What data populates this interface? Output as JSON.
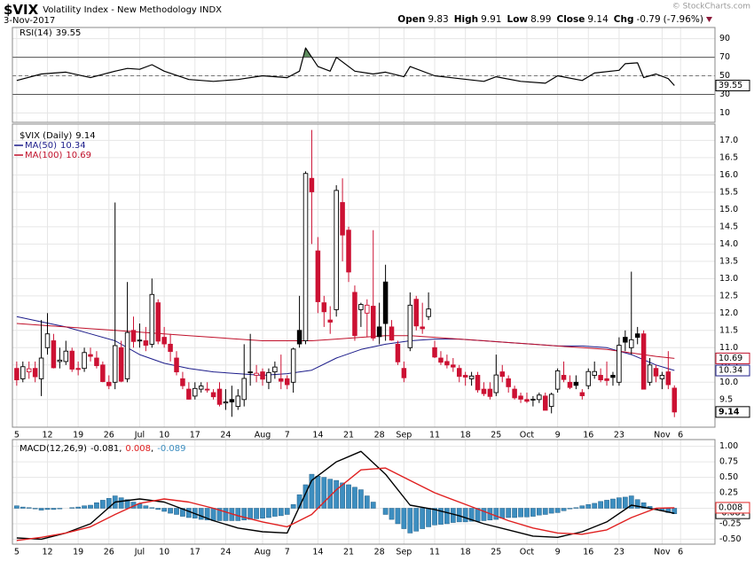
{
  "header": {
    "symbol": "$VIX",
    "name": "Volatility Index - New Methodology INDX",
    "date": "3-Nov-2017",
    "stats": [
      {
        "label": "Open",
        "value": 9.83
      },
      {
        "label": "High",
        "value": 9.91
      },
      {
        "label": "Low",
        "value": 8.99
      },
      {
        "label": "Close",
        "value": 9.14
      },
      {
        "label": "Chg",
        "value": -0.79
      }
    ],
    "change_pct": "(-7.96%)",
    "copyright": "© StockCharts.com"
  },
  "chart_data": [
    {
      "type": "line",
      "title": "RSI(14)",
      "color": "#000000",
      "fill_color": "#5e8c5e",
      "x": [
        0,
        4,
        8,
        12,
        16,
        18,
        20,
        22,
        24,
        28,
        32,
        36,
        40,
        44,
        46,
        47,
        49,
        51,
        52,
        55,
        58,
        60,
        63,
        64,
        68,
        72,
        76,
        78,
        82,
        86,
        88,
        92,
        94,
        98,
        99,
        101,
        102,
        104,
        106,
        107
      ],
      "values": [
        45,
        52,
        54,
        48,
        55,
        58,
        57,
        62,
        55,
        46,
        44,
        46,
        50,
        48,
        55,
        80,
        60,
        55,
        70,
        55,
        52,
        54,
        49,
        60,
        50,
        47,
        44,
        49,
        44,
        42,
        50,
        45,
        53,
        56,
        63,
        64,
        48,
        52,
        47,
        39.55
      ],
      "xlim": [
        -0.7,
        113.6
      ],
      "ylim": [
        0,
        102
      ],
      "yticks": [
        10,
        30,
        50,
        70,
        90
      ],
      "overbought": 70,
      "oversold": 30,
      "midline": 50,
      "grid": true
    },
    {
      "type": "candlestick",
      "title": "$VIX (Daily)",
      "up_color": "#000000",
      "down_color": "#cc1133",
      "xlim": [
        -0.7,
        113.6
      ],
      "ylim": [
        8.7,
        17.47
      ],
      "grid": true,
      "yticks": [
        9.5,
        {
          "value": 10,
          "label": "10.0"
        },
        10.5,
        {
          "value": 11,
          "label": "11.0"
        },
        11.5,
        {
          "value": 12,
          "label": "12.0"
        },
        12.5,
        {
          "value": 13,
          "label": "13.0"
        },
        13.5,
        {
          "value": 14,
          "label": "14.0"
        },
        14.5,
        {
          "value": 15,
          "label": "15.0"
        },
        15.5,
        {
          "value": 16,
          "label": "16.0"
        },
        16.5,
        {
          "value": 17,
          "label": "17.0"
        }
      ],
      "xticks": [
        {
          "value": 0,
          "label": "5"
        },
        {
          "value": 5,
          "label": "12"
        },
        {
          "value": 10,
          "label": "19"
        },
        {
          "value": 15,
          "label": "26"
        },
        {
          "value": 20,
          "label": "Jul"
        },
        {
          "value": 24,
          "label": "10"
        },
        {
          "value": 29,
          "label": "17"
        },
        {
          "value": 34,
          "label": "24"
        },
        {
          "value": 40,
          "label": "Aug"
        },
        {
          "value": 44,
          "label": "7"
        },
        {
          "value": 49,
          "label": "14"
        },
        {
          "value": 54,
          "label": "21"
        },
        {
          "value": 59,
          "label": "28"
        },
        {
          "value": 63,
          "label": "Sep"
        },
        {
          "value": 68,
          "label": "11"
        },
        {
          "value": 73,
          "label": "18"
        },
        {
          "value": 78,
          "label": "25"
        },
        {
          "value": 83,
          "label": "Oct"
        },
        {
          "value": 88,
          "label": "9"
        },
        {
          "value": 93,
          "label": "16"
        },
        {
          "value": 98,
          "label": "23"
        },
        {
          "value": 105,
          "label": "Nov"
        },
        {
          "value": 108,
          "label": "6"
        }
      ],
      "open": [
        10.4,
        10.1,
        10.3,
        10.4,
        10.1,
        11.0,
        11.2,
        10.6,
        10.6,
        10.9,
        10.4,
        10.4,
        10.8,
        10.7,
        10.5,
        10.0,
        10.0,
        11.0,
        10.1,
        11.5,
        11.2,
        11.2,
        11.1,
        12.3,
        11.3,
        11.1,
        10.7,
        10.1,
        9.8,
        9.6,
        9.8,
        9.8,
        9.7,
        9.8,
        9.4,
        9.5,
        9.3,
        9.5,
        10.3,
        10.2,
        10.3,
        10.0,
        10.3,
        10.1,
        10.1,
        10.0,
        11.5,
        11.2,
        15.9,
        13.8,
        12.3,
        11.8,
        12.1,
        15.2,
        14.4,
        12.6,
        12.1,
        12.0,
        12.2,
        11.6,
        12.9,
        11.6,
        11.1,
        10.4,
        11.0,
        12.4,
        11.6,
        11.9,
        11.0,
        10.7,
        10.6,
        10.5,
        10.4,
        10.2,
        10.1,
        10.2,
        9.8,
        9.8,
        9.7,
        10.3,
        10.1,
        9.8,
        9.6,
        9.5,
        9.5,
        9.5,
        9.6,
        9.3,
        9.8,
        10.2,
        10.0,
        10.0,
        9.7,
        9.9,
        10.2,
        10.2,
        10.1,
        10.2,
        10.0,
        11.3,
        11.0,
        11.4,
        11.4,
        10.0,
        10.4,
        10.1,
        10.3,
        9.83
      ],
      "high": [
        10.6,
        10.6,
        10.6,
        10.6,
        11.8,
        12.0,
        11.4,
        11.0,
        11.2,
        11.0,
        10.6,
        11.0,
        11.0,
        10.9,
        10.6,
        10.2,
        15.2,
        11.2,
        12.9,
        11.9,
        11.7,
        11.6,
        13.0,
        12.4,
        11.6,
        11.4,
        10.9,
        10.3,
        10.0,
        10.0,
        10.0,
        10.0,
        9.8,
        10.0,
        9.8,
        9.9,
        9.8,
        11.1,
        11.4,
        10.5,
        10.4,
        10.4,
        10.6,
        10.8,
        10.2,
        11.0,
        12.5,
        16.1,
        17.3,
        14.2,
        12.5,
        12.2,
        15.7,
        15.9,
        14.5,
        12.8,
        12.3,
        12.4,
        14.4,
        12.3,
        13.4,
        11.8,
        11.2,
        10.6,
        12.6,
        12.5,
        12.3,
        12.6,
        11.2,
        10.9,
        10.8,
        10.7,
        10.5,
        10.3,
        10.3,
        10.3,
        10.0,
        10.0,
        10.8,
        10.5,
        10.2,
        9.9,
        9.7,
        9.7,
        9.6,
        9.7,
        9.7,
        9.7,
        10.4,
        10.6,
        10.2,
        10.2,
        9.8,
        10.4,
        10.6,
        10.4,
        10.6,
        10.3,
        11.3,
        11.5,
        13.2,
        11.6,
        11.5,
        10.7,
        10.5,
        10.3,
        10.9,
        9.91
      ],
      "low": [
        9.9,
        10.0,
        10.1,
        10.0,
        9.6,
        10.8,
        10.4,
        10.4,
        10.5,
        10.3,
        10.2,
        10.3,
        10.6,
        10.4,
        10.0,
        9.8,
        9.8,
        10.0,
        10.0,
        11.0,
        11.0,
        10.9,
        11.0,
        11.1,
        11.0,
        10.6,
        10.2,
        9.8,
        9.5,
        9.5,
        9.7,
        9.7,
        9.5,
        9.3,
        9.2,
        9.0,
        9.2,
        9.3,
        9.9,
        10.0,
        9.9,
        9.8,
        10.1,
        9.8,
        9.8,
        9.7,
        11.0,
        11.1,
        14.0,
        12.0,
        11.6,
        11.4,
        11.9,
        13.5,
        12.9,
        11.2,
        11.6,
        11.3,
        11.2,
        11.1,
        11.2,
        11.2,
        10.5,
        10.0,
        10.9,
        11.5,
        11.4,
        11.8,
        10.7,
        10.5,
        10.4,
        10.3,
        10.0,
        9.9,
        9.9,
        9.7,
        9.6,
        9.5,
        9.6,
        10.0,
        9.7,
        9.5,
        9.4,
        9.4,
        9.3,
        9.4,
        9.2,
        9.1,
        9.7,
        10.0,
        9.8,
        9.8,
        9.5,
        9.8,
        10.1,
        10.0,
        9.9,
        9.9,
        9.9,
        10.9,
        10.8,
        11.1,
        9.8,
        9.9,
        10.0,
        9.8,
        9.8,
        8.99
      ],
      "close": [
        10.07,
        10.45,
        10.39,
        10.16,
        10.7,
        11.4,
        10.42,
        10.64,
        10.9,
        10.38,
        10.37,
        10.86,
        10.75,
        10.48,
        10.02,
        9.9,
        11.06,
        10.03,
        11.44,
        11.18,
        11.22,
        11.07,
        12.54,
        11.19,
        11.11,
        10.89,
        10.3,
        9.9,
        9.51,
        9.82,
        9.89,
        9.79,
        9.58,
        9.36,
        9.43,
        9.43,
        9.6,
        10.11,
        10.29,
        10.26,
        10.09,
        10.28,
        10.44,
        10.03,
        9.93,
        10.96,
        11.11,
        16.04,
        15.51,
        12.33,
        12.04,
        11.74,
        15.55,
        14.26,
        13.19,
        11.35,
        12.25,
        12.23,
        11.28,
        11.32,
        11.7,
        11.22,
        10.59,
        10.13,
        12.23,
        11.63,
        11.55,
        12.12,
        10.73,
        10.58,
        10.5,
        10.44,
        10.17,
        10.15,
        10.18,
        9.78,
        9.67,
        9.59,
        10.21,
        10.17,
        9.87,
        9.55,
        9.51,
        9.45,
        9.51,
        9.63,
        9.19,
        9.65,
        10.33,
        10.08,
        9.85,
        9.91,
        9.61,
        10.31,
        10.31,
        10.07,
        10.05,
        10.14,
        11.07,
        11.16,
        11.23,
        11.3,
        9.8,
        10.5,
        10.18,
        10.2,
        9.93,
        9.14
      ],
      "series": [
        {
          "name": "MA(50)",
          "color": "#1c1c8a",
          "x": [
            0,
            4,
            8,
            12,
            16,
            20,
            24,
            28,
            32,
            36,
            40,
            44,
            48,
            52,
            56,
            60,
            64,
            68,
            72,
            76,
            80,
            84,
            88,
            92,
            96,
            100,
            104,
            107
          ],
          "values": [
            11.9,
            11.75,
            11.6,
            11.4,
            11.2,
            10.8,
            10.55,
            10.4,
            10.3,
            10.25,
            10.2,
            10.25,
            10.35,
            10.7,
            10.95,
            11.1,
            11.2,
            11.25,
            11.25,
            11.2,
            11.15,
            11.1,
            11.05,
            11.05,
            11.0,
            10.8,
            10.5,
            10.34
          ]
        },
        {
          "name": "MA(100)",
          "color": "#c0102a",
          "x": [
            0,
            4,
            8,
            12,
            16,
            20,
            24,
            28,
            32,
            36,
            40,
            44,
            48,
            52,
            56,
            60,
            64,
            68,
            72,
            76,
            80,
            84,
            88,
            92,
            96,
            100,
            104,
            107
          ],
          "values": [
            11.7,
            11.65,
            11.6,
            11.55,
            11.5,
            11.45,
            11.4,
            11.35,
            11.3,
            11.25,
            11.2,
            11.2,
            11.2,
            11.25,
            11.3,
            11.35,
            11.35,
            11.3,
            11.25,
            11.2,
            11.15,
            11.1,
            11.05,
            11.0,
            10.95,
            10.85,
            10.75,
            10.69
          ]
        }
      ]
    },
    {
      "type": "macd",
      "title": "MACD(12,26,9)",
      "separator": ",",
      "xlim": [
        -0.7,
        113.6
      ],
      "ylim": [
        -0.58,
        1.11
      ],
      "grid": true,
      "yticks": [
        {
          "value": -0.5,
          "label": "-0.50"
        },
        {
          "value": -0.25,
          "label": "-0.25"
        },
        {
          "value": 0,
          "label": "0.00"
        },
        {
          "value": 0.25,
          "label": "0.25"
        },
        {
          "value": 0.5,
          "label": "0.50"
        },
        {
          "value": 0.75,
          "label": "0.75"
        },
        {
          "value": 1,
          "label": "1.00"
        }
      ],
      "xticks": [
        {
          "value": 0,
          "label": "5"
        },
        {
          "value": 5,
          "label": "12"
        },
        {
          "value": 10,
          "label": "19"
        },
        {
          "value": 15,
          "label": "26"
        },
        {
          "value": 20,
          "label": "Jul"
        },
        {
          "value": 24,
          "label": "10"
        },
        {
          "value": 29,
          "label": "17"
        },
        {
          "value": 34,
          "label": "24"
        },
        {
          "value": 40,
          "label": "Aug"
        },
        {
          "value": 44,
          "label": "7"
        },
        {
          "value": 49,
          "label": "14"
        },
        {
          "value": 54,
          "label": "21"
        },
        {
          "value": 59,
          "label": "28"
        },
        {
          "value": 63,
          "label": "Sep"
        },
        {
          "value": 68,
          "label": "11"
        },
        {
          "value": 73,
          "label": "18"
        },
        {
          "value": 78,
          "label": "25"
        },
        {
          "value": 83,
          "label": "Oct"
        },
        {
          "value": 88,
          "label": "9"
        },
        {
          "value": 93,
          "label": "16"
        },
        {
          "value": 98,
          "label": "23"
        },
        {
          "value": 105,
          "label": "Nov"
        },
        {
          "value": 108,
          "label": "6"
        }
      ],
      "series": [
        {
          "type": "line",
          "color": "#000000",
          "x": [
            0,
            4,
            8,
            12,
            16,
            20,
            24,
            28,
            32,
            36,
            40,
            44,
            48,
            52,
            56,
            60,
            64,
            68,
            72,
            76,
            80,
            84,
            88,
            92,
            96,
            100,
            104,
            107
          ],
          "values": [
            -0.48,
            -0.5,
            -0.4,
            -0.25,
            0.1,
            0.15,
            0.1,
            -0.05,
            -0.2,
            -0.32,
            -0.38,
            -0.4,
            0.45,
            0.75,
            0.92,
            0.55,
            0.05,
            -0.02,
            -0.12,
            -0.25,
            -0.35,
            -0.45,
            -0.47,
            -0.38,
            -0.22,
            0.05,
            -0.02,
            -0.081
          ]
        },
        {
          "type": "line",
          "color": "#e02020",
          "x": [
            0,
            4,
            8,
            12,
            16,
            20,
            24,
            28,
            32,
            36,
            40,
            44,
            48,
            52,
            56,
            60,
            64,
            68,
            72,
            76,
            80,
            84,
            88,
            92,
            96,
            100,
            104,
            107
          ],
          "values": [
            -0.52,
            -0.47,
            -0.4,
            -0.3,
            -0.1,
            0.08,
            0.15,
            0.1,
            0.0,
            -0.12,
            -0.22,
            -0.3,
            -0.1,
            0.3,
            0.62,
            0.65,
            0.45,
            0.25,
            0.1,
            -0.05,
            -0.2,
            -0.32,
            -0.4,
            -0.42,
            -0.35,
            -0.15,
            0.0,
            0.008
          ]
        },
        {
          "type": "bar",
          "color": "#3d8ec0",
          "values": [
            0.04,
            0.02,
            0.01,
            -0.01,
            -0.03,
            -0.02,
            -0.02,
            -0.01,
            0.0,
            0.01,
            0.02,
            0.04,
            0.05,
            0.09,
            0.13,
            0.16,
            0.2,
            0.17,
            0.14,
            0.1,
            0.07,
            0.04,
            0.01,
            -0.02,
            -0.05,
            -0.08,
            -0.1,
            -0.13,
            -0.15,
            -0.16,
            -0.18,
            -0.19,
            -0.2,
            -0.2,
            -0.2,
            -0.2,
            -0.2,
            -0.19,
            -0.18,
            -0.17,
            -0.16,
            -0.15,
            -0.13,
            -0.12,
            -0.1,
            0.06,
            0.22,
            0.38,
            0.55,
            0.52,
            0.5,
            0.47,
            0.45,
            0.41,
            0.38,
            0.34,
            0.3,
            0.2,
            0.1,
            0.0,
            -0.1,
            -0.18,
            -0.25,
            -0.33,
            -0.4,
            -0.37,
            -0.33,
            -0.3,
            -0.27,
            -0.26,
            -0.25,
            -0.23,
            -0.22,
            -0.22,
            -0.21,
            -0.21,
            -0.2,
            -0.19,
            -0.18,
            -0.16,
            -0.15,
            -0.15,
            -0.14,
            -0.14,
            -0.13,
            -0.11,
            -0.1,
            -0.08,
            -0.07,
            -0.04,
            -0.01,
            0.01,
            0.04,
            0.06,
            0.08,
            0.11,
            0.13,
            0.15,
            0.17,
            0.18,
            0.2,
            0.14,
            0.09,
            0.03,
            -0.02,
            -0.04,
            -0.07,
            -0.089
          ]
        }
      ]
    }
  ]
}
